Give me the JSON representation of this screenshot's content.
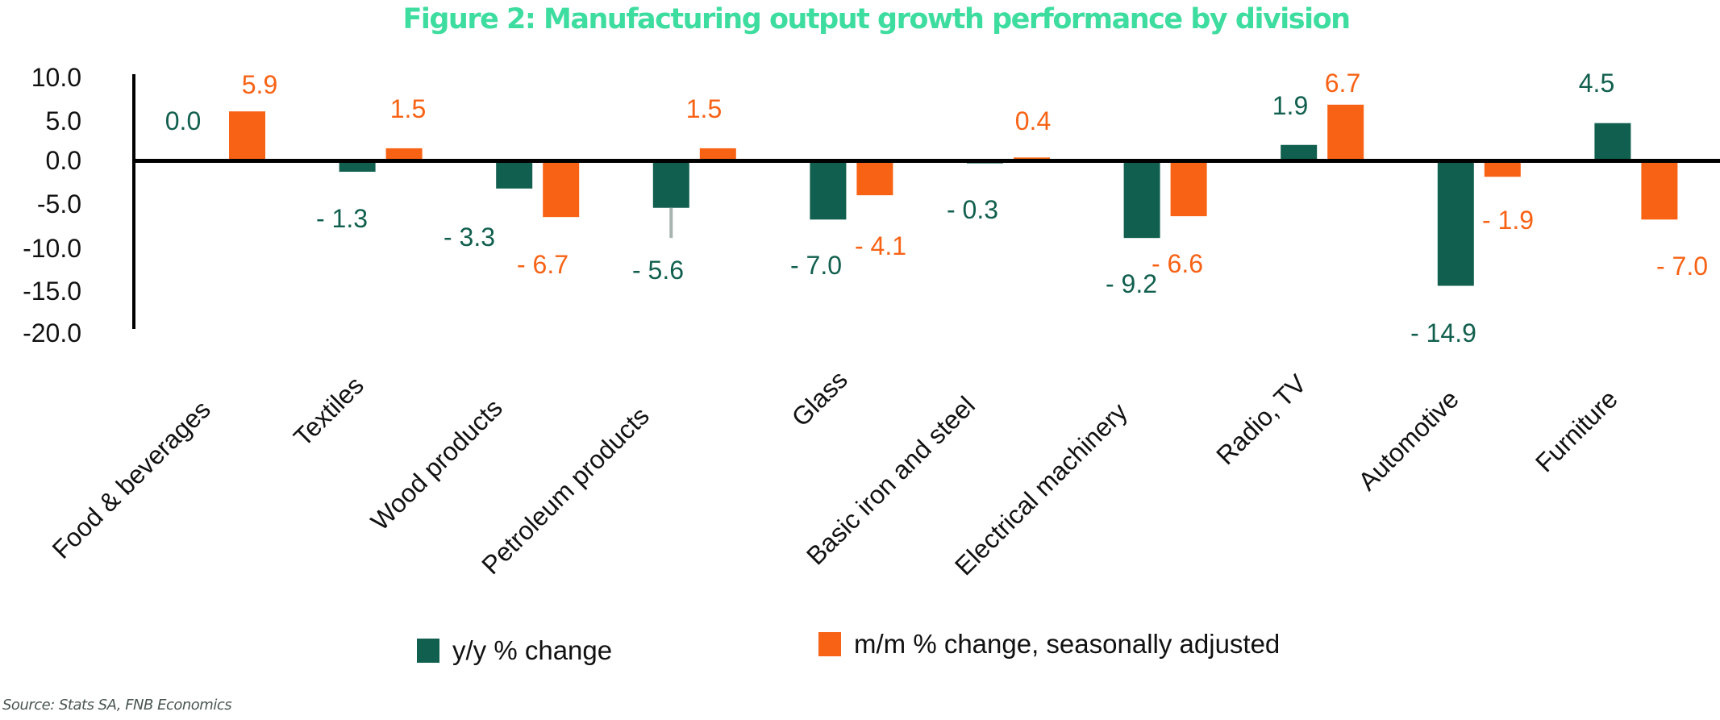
{
  "title": "Figure 2: Manufacturing output growth performance by division",
  "source": "Source: Stats SA, FNB Economics",
  "colors": {
    "title": "#3ddc9f",
    "series_yy": "#115f4e",
    "series_mm": "#f86215",
    "axis": "#000000",
    "error_bar": "#a8b4b0"
  },
  "legend": [
    {
      "label": "y/y % change",
      "color": "#115f4e"
    },
    {
      "label": "m/m % change, seasonally adjusted",
      "color": "#f86215"
    }
  ],
  "chart_data": {
    "type": "bar",
    "title": "Figure 2: Manufacturing output growth performance by division",
    "xlabel": "",
    "ylabel": "",
    "ylim": [
      -20,
      10
    ],
    "yticks": [
      "10.0",
      "5.0",
      "0.0",
      "-5.0",
      "-10.0",
      "-15.0",
      "-20.0"
    ],
    "ytick_values": [
      10,
      5,
      0,
      -5,
      -10,
      -15,
      -20
    ],
    "grid": false,
    "legend_position": "bottom",
    "categories": [
      "Food & beverages",
      "Textiles",
      "Wood products",
      "Petroleum products",
      "Glass",
      "Basic iron and steel",
      "Electrical machinery",
      "Radio, TV",
      "Automotive",
      "Furniture"
    ],
    "series": [
      {
        "name": "y/y % change",
        "values": [
          0.0,
          -1.3,
          -3.3,
          -5.6,
          -7.0,
          -0.3,
          -9.2,
          1.9,
          -14.9,
          4.5
        ],
        "labels": [
          "0.0",
          "- 1.3",
          "- 3.3",
          "- 5.6",
          "- 7.0",
          "- 0.3",
          "- 9.2",
          "1.9",
          "- 14.9",
          "4.5"
        ]
      },
      {
        "name": "m/m % change, seasonally adjusted",
        "values": [
          5.9,
          1.5,
          -6.7,
          1.5,
          -4.1,
          0.4,
          -6.6,
          6.7,
          -1.9,
          -7.0
        ],
        "labels": [
          "5.9",
          "1.5",
          "- 6.7",
          "1.5",
          "- 4.1",
          "0.4",
          "- 6.6",
          "6.7",
          "- 1.9",
          "- 7.0"
        ]
      }
    ],
    "error_bars": [
      {
        "category": "Petroleum products",
        "series": "y/y % change",
        "low": -9.2
      }
    ]
  }
}
